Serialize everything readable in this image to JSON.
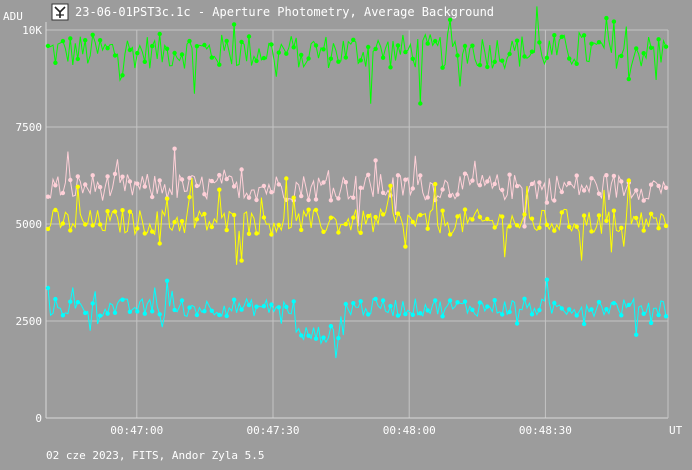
{
  "window": {
    "title": "23-06-01PST3c.1c - Aperture Photometry, Average Background",
    "icon": "app-logo-icon"
  },
  "footer": {
    "text": "02 cze 2023, FITS, Andor Zyla 5.5"
  },
  "chart_data": {
    "type": "scatter",
    "title": "23-06-01PST3c.1c - Aperture Photometry, Average Background",
    "ylabel": "ADU",
    "xlabel": "UT",
    "ylim": [
      0,
      10000
    ],
    "y_ticks": [
      0,
      2500,
      5000,
      7500,
      10000
    ],
    "y_tick_labels": [
      "0",
      "2500",
      "5000",
      "7500",
      "10K"
    ],
    "x_range": [
      "00:46:40",
      "00:48:57"
    ],
    "x_ticks": [
      "00:47:00",
      "00:47:30",
      "00:48:00",
      "00:48:30"
    ],
    "grid": true,
    "legend": "none",
    "series": [
      {
        "color": "#00ff00",
        "mean": 9450,
        "amp": 450,
        "spike": 1200
      },
      {
        "color": "#ffd0d8",
        "mean": 5950,
        "amp": 350,
        "spike": 750
      },
      {
        "color": "#ffff00",
        "mean": 5050,
        "amp": 330,
        "spike": 900
      },
      {
        "color": "#00ffff",
        "mean": 2850,
        "amp": 230,
        "spike": 650,
        "dip": {
          "from": 0.4,
          "to": 0.48,
          "value": 2150
        }
      }
    ],
    "points_per_series": 250
  }
}
